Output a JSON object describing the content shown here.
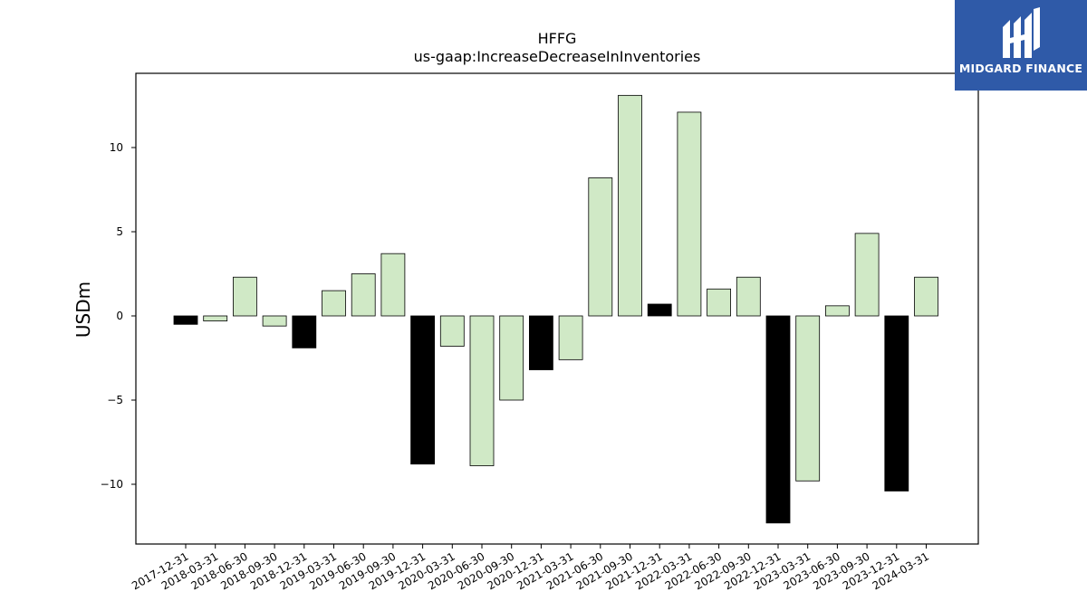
{
  "chart_data": {
    "type": "bar",
    "title": "HFFG",
    "subtitle": "us-gaap:IncreaseDecreaseInInventories",
    "ylabel": "USDm",
    "ylim": [
      -13.5,
      14.5
    ],
    "yticks": [
      -10,
      -5,
      0,
      5,
      10
    ],
    "yticklabels": [
      "−10",
      "−5",
      "0",
      "5",
      "10"
    ],
    "grid": false,
    "categories": [
      "2017-12-31",
      "2018-03-31",
      "2018-06-30",
      "2018-09-30",
      "2018-12-31",
      "2019-03-31",
      "2019-06-30",
      "2019-09-30",
      "2019-12-31",
      "2020-03-31",
      "2020-06-30",
      "2020-09-30",
      "2020-12-31",
      "2021-03-31",
      "2021-06-30",
      "2021-09-30",
      "2021-12-31",
      "2022-03-31",
      "2022-06-30",
      "2022-09-30",
      "2022-12-31",
      "2023-03-31",
      "2023-06-30",
      "2023-09-30",
      "2023-12-31",
      "2024-03-31"
    ],
    "values": [
      -0.5,
      -0.3,
      2.3,
      -0.6,
      -1.9,
      1.5,
      2.5,
      3.7,
      -8.8,
      -1.8,
      -8.9,
      -5.0,
      -3.2,
      -2.6,
      8.2,
      13.1,
      0.7,
      12.1,
      1.6,
      2.3,
      -12.3,
      -9.8,
      0.6,
      4.9,
      -10.4,
      2.3
    ],
    "highlight": [
      true,
      false,
      false,
      false,
      true,
      false,
      false,
      false,
      true,
      false,
      false,
      false,
      true,
      false,
      false,
      false,
      true,
      false,
      false,
      false,
      true,
      false,
      false,
      false,
      true,
      false
    ],
    "colors": {
      "normal": "#d0e9c6",
      "highlight": "#000000",
      "edge": "#000000"
    }
  },
  "logo": {
    "text": "MIDGARD FINANCE",
    "bg": "#2f5aa8"
  }
}
